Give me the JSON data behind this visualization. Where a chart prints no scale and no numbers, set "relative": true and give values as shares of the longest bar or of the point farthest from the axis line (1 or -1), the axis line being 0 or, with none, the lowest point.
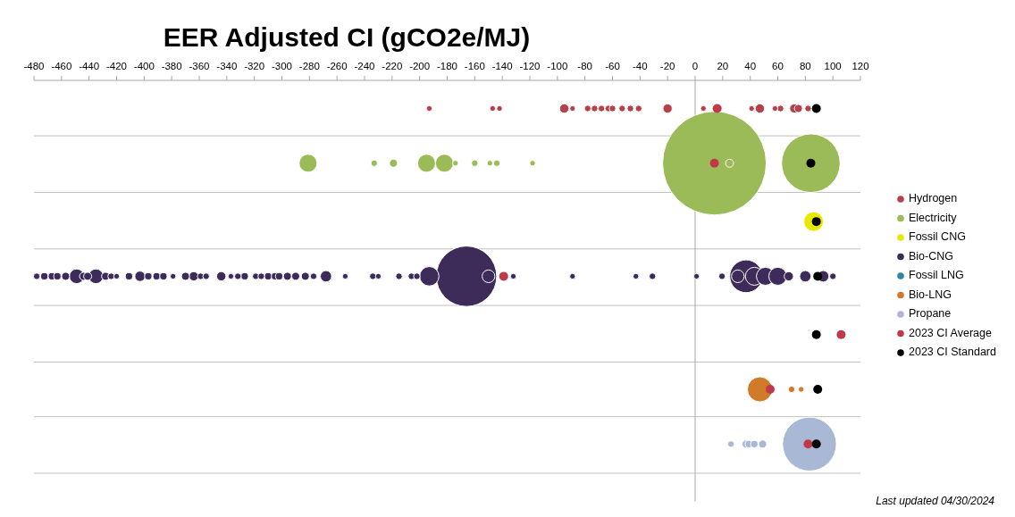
{
  "chart_data": {
    "type": "bubble",
    "title": "EER Adjusted CI (gCO2e/MJ)",
    "xlim": [
      -480,
      120
    ],
    "xticks": [
      -480,
      -460,
      -440,
      -420,
      -400,
      -380,
      -360,
      -340,
      -320,
      -300,
      -280,
      -260,
      -240,
      -220,
      -200,
      -180,
      -160,
      -140,
      -120,
      -100,
      -80,
      -60,
      -40,
      -20,
      0,
      20,
      40,
      60,
      80,
      100,
      120
    ],
    "relative": true,
    "tick_labels": "x",
    "grid": "y",
    "legend": "right",
    "marker": "circle",
    "ref_lines": [
      {
        "axis": "x",
        "value": 0,
        "color": "#a6a6a6"
      }
    ],
    "series": [
      {
        "name": "Hydrogen",
        "color": "#b5424a",
        "x": [
          -193,
          -147,
          -142,
          -95,
          -89,
          -78,
          -73,
          -68,
          -63,
          -60,
          -53,
          -47,
          -41,
          -20,
          6,
          41,
          47,
          58,
          62,
          72,
          75,
          82
        ],
        "values": [
          1,
          1,
          1,
          1,
          1,
          1,
          1,
          1,
          1,
          1,
          1,
          1,
          1,
          1,
          1,
          1,
          1,
          1,
          1,
          1,
          1,
          1
        ],
        "sizes": [
          0.003,
          0.003,
          0.003,
          0.008,
          0.003,
          0.004,
          0.004,
          0.004,
          0.004,
          0.004,
          0.004,
          0.004,
          0.004,
          0.008,
          0.003,
          0.003,
          0.008,
          0.003,
          0.004,
          0.008,
          0.006,
          0.004
        ]
      },
      {
        "name": "Electricity",
        "color": "#9bbb59",
        "x": [
          14,
          84,
          -281,
          -233,
          -219,
          -195,
          -182,
          -174,
          -160,
          -149,
          -144,
          -118,
          25
        ],
        "values": [
          0.85,
          0.85,
          0.85,
          0.85,
          0.85,
          0.85,
          0.85,
          0.85,
          0.85,
          0.85,
          0.85,
          0.85,
          0.85
        ],
        "sizes": [
          1,
          0.32,
          0.03,
          0.004,
          0.006,
          0.03,
          0.03,
          0.003,
          0.004,
          0.003,
          0.004,
          0.003,
          0.006
        ]
      },
      {
        "name": "Fossil CNG",
        "color": "#e8e800",
        "x": [
          86
        ],
        "values": [
          0.69
        ],
        "sizes": [
          0.036
        ]
      },
      {
        "name": "Bio-CNG",
        "color": "#3d2c5a",
        "x": [
          -166,
          37,
          -478,
          -472.5,
          -467,
          -463,
          -457,
          -449,
          -444,
          -441,
          -435,
          -428,
          -424,
          -420,
          -411,
          -403,
          -397,
          -391,
          -386,
          -379,
          -370,
          -364,
          -359,
          -355,
          -344,
          -337,
          -332,
          -327,
          -319,
          -315,
          -310,
          -305,
          -302,
          -296,
          -290,
          -283,
          -277,
          -268,
          -254,
          -234,
          -230,
          -215,
          -206,
          -202,
          -193,
          -150,
          -132,
          -89,
          -43,
          -31,
          1,
          19.5,
          31,
          43,
          51,
          60,
          68,
          80,
          93,
          100
        ],
        "values": [
          0.54,
          0.54,
          0.54,
          0.54,
          0.54,
          0.54,
          0.54,
          0.54,
          0.54,
          0.54,
          0.54,
          0.54,
          0.54,
          0.54,
          0.54,
          0.54,
          0.54,
          0.54,
          0.54,
          0.54,
          0.54,
          0.54,
          0.54,
          0.54,
          0.54,
          0.54,
          0.54,
          0.54,
          0.54,
          0.54,
          0.54,
          0.54,
          0.54,
          0.54,
          0.54,
          0.54,
          0.54,
          0.54,
          0.54,
          0.54,
          0.54,
          0.54,
          0.54,
          0.54,
          0.54,
          0.54,
          0.54,
          0.54,
          0.54,
          0.54,
          0.54,
          0.54,
          0.54,
          0.54,
          0.54,
          0.54,
          0.54,
          0.54,
          0.54,
          0.54
        ],
        "sizes": [
          0.34,
          0.1,
          0.004,
          0.005,
          0.005,
          0.005,
          0.006,
          0.02,
          0.006,
          0.006,
          0.02,
          0.006,
          0.004,
          0.003,
          0.005,
          0.01,
          0.005,
          0.005,
          0.005,
          0.003,
          0.006,
          0.008,
          0.004,
          0.004,
          0.008,
          0.003,
          0.004,
          0.005,
          0.004,
          0.004,
          0.005,
          0.005,
          0.005,
          0.006,
          0.006,
          0.006,
          0.004,
          0.012,
          0.003,
          0.004,
          0.003,
          0.004,
          0.004,
          0.004,
          0.035,
          0.015,
          0.003,
          0.003,
          0.003,
          0.004,
          0.003,
          0.004,
          0.015,
          0.03,
          0.03,
          0.03,
          0.008,
          0.012,
          0.012,
          0.004
        ]
      },
      {
        "name": "Fossil LNG",
        "color": "#31859c"
      },
      {
        "name": "Bio-LNG",
        "color": "#d07a2a",
        "x": [
          47,
          70,
          77
        ],
        "values": [
          0.23,
          0.23,
          0.23
        ],
        "sizes": [
          0.058,
          0.004,
          0.003
        ]
      },
      {
        "name": "Propane",
        "color": "#a9b8d4",
        "x": [
          83,
          26,
          37,
          39,
          43,
          49
        ],
        "values": [
          0.08,
          0.08,
          0.08,
          0.08,
          0.08,
          0.08
        ],
        "sizes": [
          0.27,
          0.004,
          0.006,
          0.005,
          0.005,
          0.006
        ]
      },
      {
        "name": "2023 CI Average",
        "type": "scatter",
        "color": "#c0394b",
        "x": [
          16,
          14,
          -139,
          106,
          54.5,
          82
        ],
        "values": [
          1,
          0.85,
          0.54,
          0.38,
          0.23,
          0.08
        ]
      },
      {
        "name": "2023 CI Standard",
        "type": "scatter",
        "color": "#000000",
        "x": [
          88,
          84,
          88,
          89,
          88,
          89,
          88
        ],
        "values": [
          1,
          0.85,
          0.69,
          0.54,
          0.38,
          0.23,
          0.08
        ]
      }
    ],
    "annotations": [
      "Last updated 04/30/2024"
    ]
  }
}
